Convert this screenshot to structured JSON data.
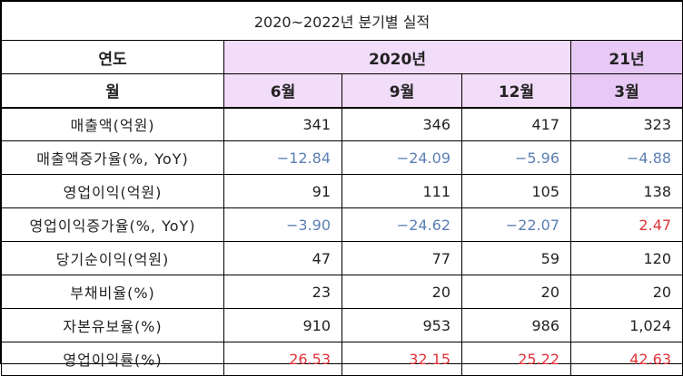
{
  "title": "2020~2022년 분기별 실적",
  "header": {
    "year_label": "연도",
    "year_2020": "2020년",
    "year_21": "21년",
    "month_label": "월",
    "months": [
      "6월",
      "9월",
      "12월",
      "3월"
    ]
  },
  "rows": [
    {
      "label": "매출액(억원)",
      "values": [
        "341",
        "346",
        "417",
        "323"
      ],
      "styles": [
        "",
        "",
        "",
        ""
      ]
    },
    {
      "label": "매출액증가율(%, YoY)",
      "values": [
        "−12.84",
        "−24.09",
        "−5.96",
        "−4.88"
      ],
      "styles": [
        "neg",
        "neg",
        "neg",
        "neg"
      ]
    },
    {
      "label": "영업이익(억원)",
      "values": [
        "91",
        "111",
        "105",
        "138"
      ],
      "styles": [
        "",
        "",
        "",
        ""
      ]
    },
    {
      "label": "영업이익증가율(%, YoY)",
      "values": [
        "−3.90",
        "−24.62",
        "−22.07",
        "2.47"
      ],
      "styles": [
        "neg",
        "neg",
        "neg",
        "pos-red"
      ]
    },
    {
      "label": "당기순이익(억원)",
      "values": [
        "47",
        "77",
        "59",
        "120"
      ],
      "styles": [
        "",
        "",
        "",
        ""
      ]
    },
    {
      "label": "부채비율(%)",
      "values": [
        "23",
        "20",
        "20",
        "20"
      ],
      "styles": [
        "",
        "",
        "",
        ""
      ]
    },
    {
      "label": "자본유보율(%)",
      "values": [
        "910",
        "953",
        "986",
        "1,024"
      ],
      "styles": [
        "",
        "",
        "",
        ""
      ]
    },
    {
      "label": "영업이익률(%)",
      "values": [
        "26.53",
        "32.15",
        "25.22",
        "42.63"
      ],
      "styles": [
        "pos-red",
        "pos-red",
        "pos-red",
        "pos-red"
      ]
    }
  ],
  "colors": {
    "header_2020_bg": "#f1dcf9",
    "header_21_bg": "#e8c8f5",
    "negative_text": "#5b7fb3",
    "highlight_text": "#e0333a"
  }
}
